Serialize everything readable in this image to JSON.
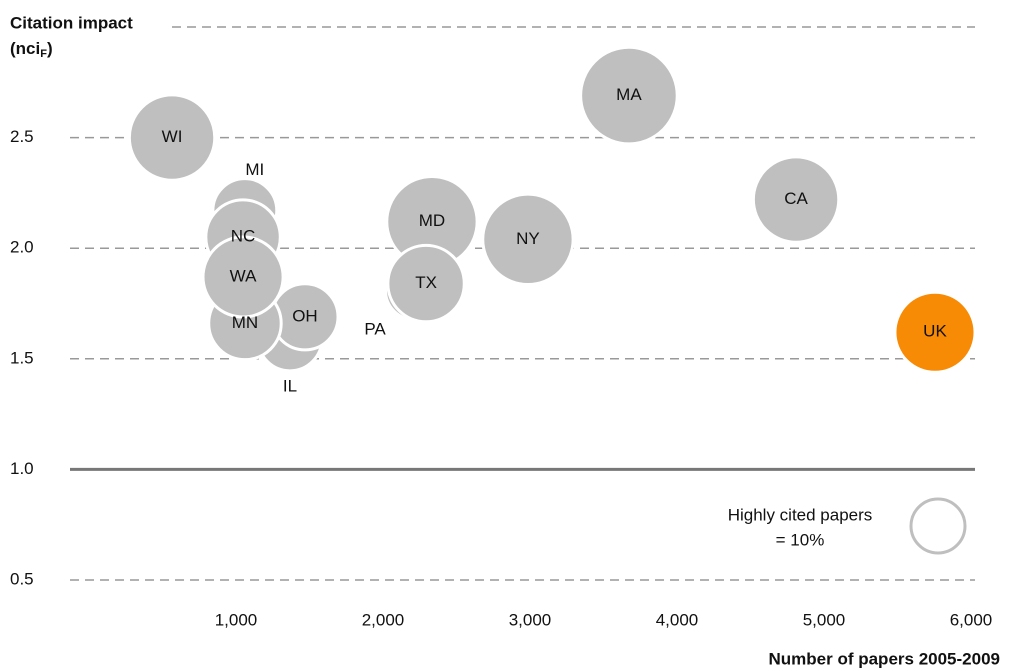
{
  "chart_data": {
    "type": "bubble",
    "y_label": "Citation impact",
    "y_unit": {
      "open": "(nci",
      "sub": "F",
      "close": ")"
    },
    "x_label": "Number of papers 2005-2009",
    "labels": [
      "WI",
      "MI",
      "NC",
      "IL",
      "OH",
      "MN",
      "WA",
      "MD",
      "PA",
      "TX",
      "NY",
      "MA",
      "CA",
      "UK"
    ],
    "x": [
      565,
      1060,
      1048,
      1367,
      1469,
      1061,
      1048,
      2333,
      2218,
      2293,
      2986,
      3673,
      4810,
      5755
    ],
    "y": [
      2.5,
      2.17,
      2.05,
      1.59,
      1.69,
      1.66,
      1.87,
      2.12,
      1.81,
      1.84,
      2.04,
      2.69,
      2.22,
      1.62
    ],
    "sizes": [
      25,
      14,
      19,
      14,
      15,
      18,
      22,
      28,
      12,
      20,
      28,
      32,
      25,
      22
    ],
    "colors": [
      "#bfbfbf",
      "#bfbfbf",
      "#bfbfbf",
      "#bfbfbf",
      "#bfbfbf",
      "#bfbfbf",
      "#bfbfbf",
      "#bfbfbf",
      "#bfbfbf",
      "#bfbfbf",
      "#bfbfbf",
      "#bfbfbf",
      "#bfbfbf",
      "#f88b05"
    ],
    "xlim": [
      0,
      6000
    ],
    "xticks": [
      {
        "value": 1000,
        "label": "1,000"
      },
      {
        "value": 2000,
        "label": "2,000"
      },
      {
        "value": 3000,
        "label": "3,000"
      },
      {
        "value": 4000,
        "label": "4,000"
      },
      {
        "value": 5000,
        "label": "5,000"
      },
      {
        "value": 6000,
        "label": "6,000"
      }
    ],
    "ylim": [
      0.5,
      3.0
    ],
    "yticks": [
      0.5,
      {
        "value": 1.0,
        "label": "1.0"
      },
      1.5,
      {
        "value": 2.0,
        "label": "2.0"
      },
      2.5
    ],
    "baseline": 1.0,
    "grid": true,
    "legend": {
      "lines": [
        "Highly cited papers",
        "= 10%"
      ],
      "size": 10
    }
  }
}
